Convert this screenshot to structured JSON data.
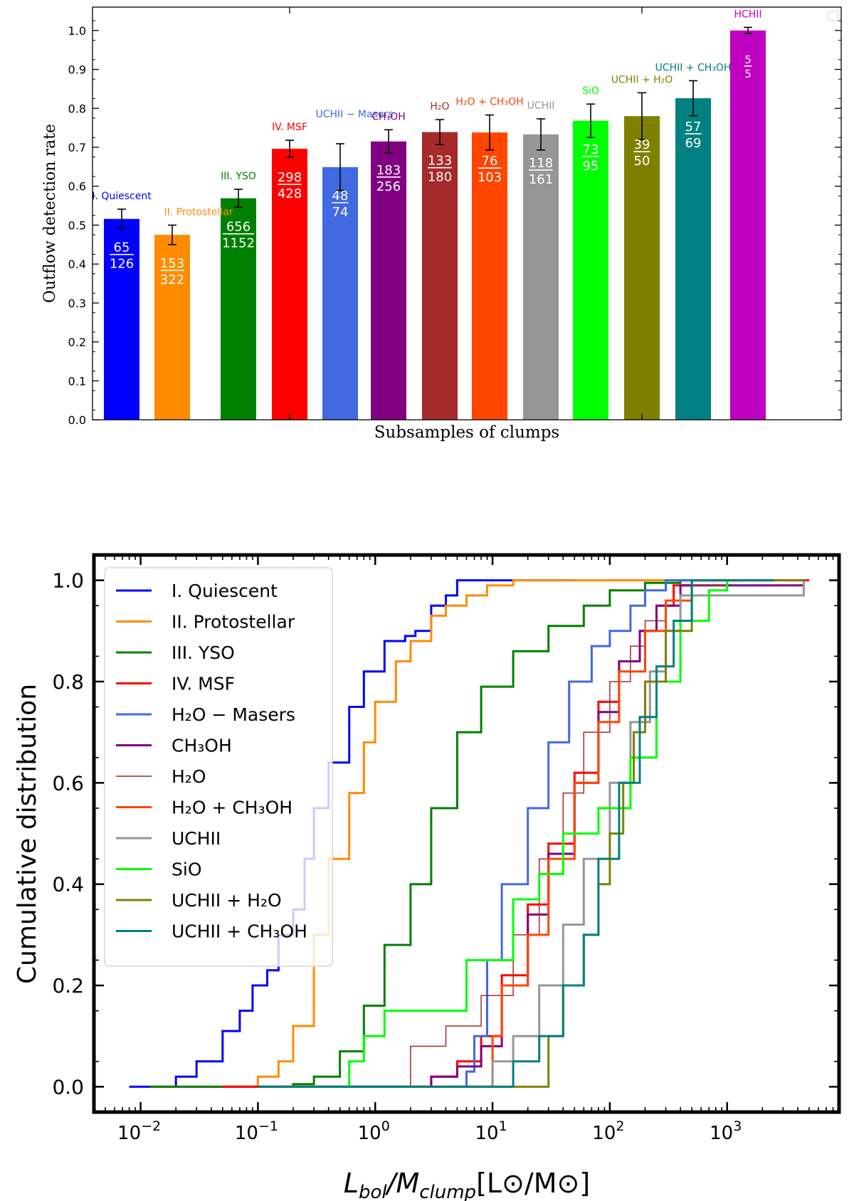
{
  "chart_data": [
    {
      "type": "bar",
      "xlabel": "Subsamples of clumps",
      "ylabel": "Outflow detection rate",
      "ylim": [
        0.0,
        1.06
      ],
      "yticks": [
        "0.0",
        "0.1",
        "0.2",
        "0.3",
        "0.4",
        "0.5",
        "0.6",
        "0.7",
        "0.8",
        "0.9",
        "1.0"
      ],
      "bars": [
        {
          "label": "I. Quiescent",
          "num": "65",
          "den": "126",
          "value": 0.516,
          "err": 0.025,
          "color": "#0000ff"
        },
        {
          "label": "II. Protostellar",
          "num": "153",
          "den": "322",
          "value": 0.475,
          "err": 0.025,
          "color": "#ff8c00"
        },
        {
          "label": "III. YSO",
          "num": "656",
          "den": "1152",
          "value": 0.569,
          "err": 0.023,
          "color": "#008000"
        },
        {
          "label": "IV. MSF",
          "num": "298",
          "den": "428",
          "value": 0.696,
          "err": 0.022,
          "color": "#ff0000"
        },
        {
          "label": "UCHII − Masers",
          "num": "48",
          "den": "74",
          "value": 0.649,
          "err": 0.06,
          "color": "#4169e1"
        },
        {
          "label": "CH₃OH",
          "num": "183",
          "den": "256",
          "value": 0.715,
          "err": 0.03,
          "color": "#800080"
        },
        {
          "label": "H₂O",
          "num": "133",
          "den": "180",
          "value": 0.739,
          "err": 0.032,
          "color": "#a52a2a"
        },
        {
          "label": "H₂O + CH₃OH",
          "num": "76",
          "den": "103",
          "value": 0.738,
          "err": 0.045,
          "color": "#ff4500"
        },
        {
          "label": "UCHII",
          "num": "118",
          "den": "161",
          "value": 0.733,
          "err": 0.04,
          "color": "#969696"
        },
        {
          "label": "SiO",
          "num": "73",
          "den": "95",
          "value": 0.768,
          "err": 0.043,
          "color": "#00ff00"
        },
        {
          "label": "UCHII + H₂O",
          "num": "39",
          "den": "50",
          "value": 0.78,
          "err": 0.06,
          "color": "#808000"
        },
        {
          "label": "UCHII + CH₃OH",
          "num": "57",
          "den": "69",
          "value": 0.826,
          "err": 0.045,
          "color": "#008080"
        },
        {
          "label": "HCHII",
          "num": "5",
          "den": "5",
          "value": 1.0,
          "err": 0.008,
          "color": "#c000c0"
        }
      ]
    },
    {
      "type": "line",
      "xlabel_main": "L",
      "xlabel_sub1": "bol",
      "xlabel_mid": "/M",
      "xlabel_sub2": "clump",
      "xlabel_units": "[L⊙/M⊙]",
      "ylabel": "Cumulative distribution",
      "xscale": "log",
      "xlim": [
        0.004,
        9000
      ],
      "ylim": [
        -0.05,
        1.05
      ],
      "xticks": [
        {
          "value": 0.01,
          "base": "10",
          "exp": "−2"
        },
        {
          "value": 0.1,
          "base": "10",
          "exp": "−1"
        },
        {
          "value": 1,
          "base": "10",
          "exp": "0"
        },
        {
          "value": 10,
          "base": "10",
          "exp": "1"
        },
        {
          "value": 100,
          "base": "10",
          "exp": "2"
        },
        {
          "value": 1000,
          "base": "10",
          "exp": "3"
        }
      ],
      "yticks": [
        "0.0",
        "0.2",
        "0.4",
        "0.6",
        "0.8",
        "1.0"
      ],
      "legend_position": "upper-left",
      "series": [
        {
          "name": "I. Quiescent",
          "color": "#0000ff",
          "width": 3,
          "x": [
            0.008,
            0.02,
            0.03,
            0.05,
            0.07,
            0.09,
            0.12,
            0.15,
            0.2,
            0.25,
            0.3,
            0.4,
            0.6,
            0.8,
            1.2,
            1.8,
            2.2,
            3,
            4,
            5,
            50
          ],
          "y": [
            0,
            0.02,
            0.05,
            0.11,
            0.15,
            0.2,
            0.23,
            0.3,
            0.35,
            0.45,
            0.55,
            0.64,
            0.75,
            0.82,
            0.88,
            0.89,
            0.9,
            0.95,
            0.97,
            1.0,
            1.0
          ]
        },
        {
          "name": "II. Protostellar",
          "color": "#ff8c00",
          "width": 3,
          "x": [
            0.012,
            0.06,
            0.1,
            0.15,
            0.2,
            0.3,
            0.4,
            0.6,
            0.8,
            1.0,
            1.5,
            2,
            3,
            4,
            6,
            9,
            15,
            2000
          ],
          "y": [
            0,
            0,
            0.02,
            0.05,
            0.12,
            0.3,
            0.45,
            0.58,
            0.68,
            0.76,
            0.84,
            0.88,
            0.93,
            0.95,
            0.97,
            0.99,
            1.0,
            1.0
          ]
        },
        {
          "name": "III. YSO",
          "color": "#008000",
          "width": 3,
          "x": [
            0.012,
            0.2,
            0.3,
            0.5,
            0.8,
            1.2,
            2,
            3,
            5,
            8,
            15,
            30,
            60,
            100,
            200,
            400,
            1500
          ],
          "y": [
            0,
            0.005,
            0.02,
            0.07,
            0.16,
            0.28,
            0.4,
            0.55,
            0.7,
            0.79,
            0.86,
            0.91,
            0.95,
            0.98,
            0.995,
            1.0,
            1.0
          ]
        },
        {
          "name": "IV. MSF",
          "color": "#ff0000",
          "width": 3,
          "x": [
            0.05,
            2,
            3,
            5,
            8,
            12,
            20,
            30,
            50,
            80,
            120,
            180,
            250,
            350,
            500,
            5000
          ],
          "y": [
            0,
            0,
            0.02,
            0.05,
            0.1,
            0.22,
            0.36,
            0.48,
            0.62,
            0.76,
            0.84,
            0.9,
            0.95,
            0.99,
            1.0,
            1.0
          ]
        },
        {
          "name": "H₂O − Masers",
          "color": "#4169e1",
          "width": 3,
          "x": [
            0.1,
            5,
            6,
            7,
            9,
            12,
            20,
            30,
            45,
            70,
            100,
            150,
            200,
            300,
            1000
          ],
          "y": [
            0,
            0,
            0.03,
            0.1,
            0.25,
            0.4,
            0.55,
            0.68,
            0.8,
            0.87,
            0.9,
            0.95,
            0.98,
            1.0,
            1.0
          ]
        },
        {
          "name": "CH₃OH",
          "color": "#800080",
          "width": 3,
          "x": [
            0.1,
            2,
            3,
            5,
            8,
            12,
            20,
            30,
            50,
            80,
            120,
            180,
            250,
            400,
            4500
          ],
          "y": [
            0,
            0,
            0.02,
            0.04,
            0.08,
            0.2,
            0.34,
            0.46,
            0.6,
            0.74,
            0.84,
            0.9,
            0.95,
            0.99,
            1.0
          ]
        },
        {
          "name": "H₂O",
          "color": "#a52a2a",
          "width": 1.5,
          "x": [
            0.1,
            1,
            2,
            4,
            8,
            15,
            25,
            40,
            60,
            100,
            150,
            200,
            300,
            500,
            1000
          ],
          "y": [
            0,
            0,
            0.08,
            0.12,
            0.18,
            0.3,
            0.45,
            0.58,
            0.7,
            0.8,
            0.87,
            0.92,
            0.96,
            0.99,
            1.0
          ]
        },
        {
          "name": "H₂O + CH₃OH",
          "color": "#ff4500",
          "width": 3,
          "x": [
            0.5,
            8,
            10,
            12,
            20,
            30,
            50,
            80,
            120,
            200,
            300,
            500,
            1000
          ],
          "y": [
            0,
            0,
            0.1,
            0.2,
            0.3,
            0.45,
            0.6,
            0.72,
            0.82,
            0.9,
            0.96,
            1.0,
            1.0
          ]
        },
        {
          "name": "UCHII",
          "color": "#969696",
          "width": 3,
          "x": [
            0.5,
            6,
            10,
            15,
            25,
            40,
            60,
            100,
            150,
            220,
            300,
            400,
            4500
          ],
          "y": [
            0,
            0,
            0.05,
            0.1,
            0.2,
            0.32,
            0.45,
            0.6,
            0.72,
            0.82,
            0.9,
            0.97,
            1.0
          ]
        },
        {
          "name": "SiO",
          "color": "#00ff00",
          "width": 3,
          "x": [
            0.5,
            0.6,
            0.8,
            1.2,
            2,
            3,
            6,
            9,
            15,
            25,
            40,
            80,
            150,
            250,
            400,
            700,
            1000
          ],
          "y": [
            0,
            0.05,
            0.1,
            0.15,
            0.15,
            0.15,
            0.25,
            0.25,
            0.37,
            0.42,
            0.5,
            0.55,
            0.65,
            0.8,
            0.92,
            0.98,
            1.0
          ]
        },
        {
          "name": "UCHII + H₂O",
          "color": "#808000",
          "width": 3,
          "x": [
            0.1,
            23,
            30,
            40,
            60,
            80,
            100,
            130,
            160,
            200,
            300,
            500,
            4500
          ],
          "y": [
            0,
            0,
            0.1,
            0.2,
            0.3,
            0.4,
            0.5,
            0.6,
            0.7,
            0.8,
            0.9,
            1.0,
            1.0
          ]
        },
        {
          "name": "UCHII + CH₃OH",
          "color": "#008080",
          "width": 3,
          "x": [
            0.1,
            10,
            15,
            25,
            40,
            60,
            80,
            120,
            180,
            250,
            350,
            500,
            2500
          ],
          "y": [
            0,
            0,
            0.05,
            0.1,
            0.2,
            0.3,
            0.45,
            0.6,
            0.73,
            0.83,
            0.92,
            1.0,
            1.0
          ]
        }
      ]
    }
  ]
}
